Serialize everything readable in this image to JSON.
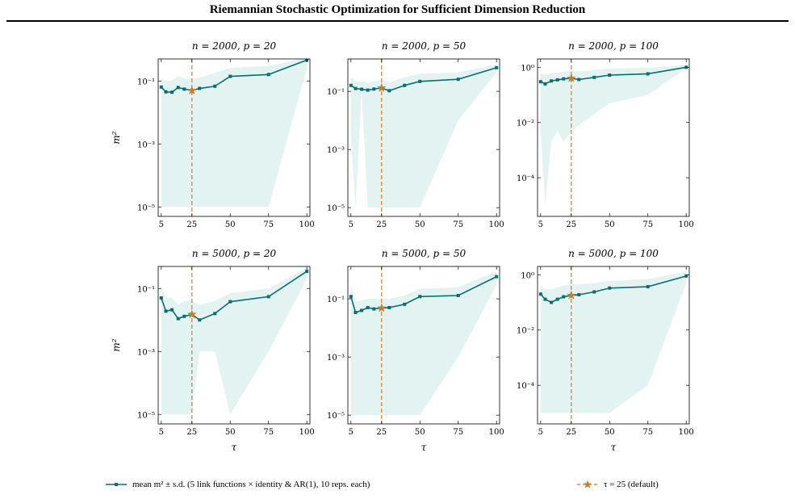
{
  "header": {
    "title": "Riemannian Stochastic Optimization for Sufficient Dimension Reduction"
  },
  "colors": {
    "line": "#0a6e6e",
    "band": "#e3f3f1",
    "reference": "#d9782a",
    "marker": "#ad8a38"
  },
  "legend": {
    "series": "mean m² ± s.d. (5 link functions × identity & AR(1), 10 reps. each)",
    "reference": "τ = 25 (default)"
  },
  "chart_data": [
    {
      "type": "line",
      "title": "n = 2000,  p = 20",
      "xlabel": "",
      "ylabel": "m²",
      "yscale": "log",
      "xlim": [
        3,
        102
      ],
      "ylim": [
        5e-06,
        0.5
      ],
      "yticks": [
        1e-05,
        0.001,
        0.1
      ],
      "ytick_labels": [
        "10⁻⁵",
        "10⁻³",
        "10⁻¹"
      ],
      "xticks": [
        5,
        25,
        50,
        75,
        100
      ],
      "xtick_labels": [
        "5",
        "25",
        "50",
        "75",
        "100"
      ],
      "grid": false,
      "x": [
        5,
        8,
        12,
        16,
        20,
        25,
        30,
        40,
        50,
        75,
        100
      ],
      "mean": [
        0.064,
        0.045,
        0.044,
        0.062,
        0.055,
        0.05,
        0.058,
        0.068,
        0.14,
        0.16,
        0.46
      ],
      "lower": [
        1e-05,
        1e-05,
        1e-05,
        1e-05,
        1e-05,
        1e-05,
        1e-05,
        1e-05,
        1e-05,
        1e-05,
        0.25
      ],
      "upper": [
        0.12,
        0.1,
        0.105,
        0.14,
        0.12,
        0.11,
        0.13,
        0.18,
        0.26,
        0.3,
        0.55
      ],
      "reference_x": 25
    },
    {
      "type": "line",
      "title": "n = 2000,  p = 50",
      "xlabel": "",
      "ylabel": "",
      "yscale": "log",
      "xlim": [
        3,
        102
      ],
      "ylim": [
        5e-06,
        1.3
      ],
      "yticks": [
        1e-05,
        0.001,
        0.1
      ],
      "ytick_labels": [
        "10⁻⁵",
        "10⁻³",
        "10⁻¹"
      ],
      "xticks": [
        5,
        25,
        50,
        75,
        100
      ],
      "xtick_labels": [
        "5",
        "25",
        "50",
        "75",
        "100"
      ],
      "grid": false,
      "x": [
        5,
        8,
        12,
        16,
        20,
        25,
        30,
        40,
        50,
        75,
        100
      ],
      "mean": [
        0.16,
        0.125,
        0.118,
        0.11,
        0.12,
        0.13,
        0.105,
        0.16,
        0.22,
        0.26,
        0.65
      ],
      "lower": [
        0.002,
        1e-05,
        0.1,
        1e-05,
        1e-05,
        1e-05,
        1e-05,
        1e-05,
        1e-05,
        0.01,
        0.45
      ],
      "upper": [
        0.3,
        0.22,
        0.22,
        0.2,
        0.22,
        0.24,
        0.2,
        0.3,
        0.4,
        0.45,
        0.85
      ],
      "reference_x": 25
    },
    {
      "type": "line",
      "title": "n = 2000,  p = 100",
      "xlabel": "",
      "ylabel": "",
      "yscale": "log",
      "xlim": [
        3,
        102
      ],
      "ylim": [
        4e-06,
        2
      ],
      "yticks": [
        0.0001,
        0.01,
        1
      ],
      "ytick_labels": [
        "10⁻⁴",
        "10⁻²",
        "10⁰"
      ],
      "xticks": [
        5,
        25,
        50,
        75,
        100
      ],
      "xtick_labels": [
        "5",
        "25",
        "50",
        "75",
        "100"
      ],
      "grid": false,
      "x": [
        5,
        8,
        12,
        16,
        20,
        25,
        30,
        40,
        50,
        75,
        100
      ],
      "mean": [
        0.3,
        0.25,
        0.32,
        0.35,
        0.38,
        0.4,
        0.36,
        0.43,
        0.52,
        0.58,
        1.0
      ],
      "lower": [
        0.005,
        1e-05,
        0.002,
        0.005,
        0.002,
        0.005,
        0.008,
        0.02,
        0.05,
        0.1,
        0.9
      ],
      "upper": [
        0.6,
        0.55,
        0.6,
        0.65,
        0.7,
        0.75,
        0.7,
        0.8,
        0.9,
        0.95,
        1.2
      ],
      "reference_x": 25
    },
    {
      "type": "line",
      "title": "n = 5000,  p = 20",
      "xlabel": "τ",
      "ylabel": "m²",
      "yscale": "log",
      "xlim": [
        3,
        102
      ],
      "ylim": [
        5e-06,
        0.5
      ],
      "yticks": [
        1e-05,
        0.001,
        0.1
      ],
      "ytick_labels": [
        "10⁻⁵",
        "10⁻³",
        "10⁻¹"
      ],
      "xticks": [
        5,
        25,
        50,
        75,
        100
      ],
      "xtick_labels": [
        "5",
        "25",
        "50",
        "75",
        "100"
      ],
      "grid": false,
      "x": [
        5,
        8,
        12,
        16,
        20,
        25,
        30,
        40,
        50,
        75,
        100
      ],
      "mean": [
        0.05,
        0.019,
        0.021,
        0.011,
        0.013,
        0.015,
        0.01,
        0.016,
        0.038,
        0.055,
        0.35
      ],
      "lower": [
        1e-05,
        1e-05,
        1e-05,
        1e-05,
        1e-05,
        1e-05,
        0.001,
        0.001,
        1e-05,
        0.001,
        0.2
      ],
      "upper": [
        0.1,
        0.05,
        0.05,
        0.03,
        0.04,
        0.04,
        0.03,
        0.04,
        0.07,
        0.1,
        0.45
      ],
      "reference_x": 25
    },
    {
      "type": "line",
      "title": "n = 5000,  p = 50",
      "xlabel": "τ",
      "ylabel": "",
      "yscale": "log",
      "xlim": [
        3,
        102
      ],
      "ylim": [
        5e-06,
        1.3
      ],
      "yticks": [
        1e-05,
        0.001,
        0.1
      ],
      "ytick_labels": [
        "10⁻⁵",
        "10⁻³",
        "10⁻¹"
      ],
      "xticks": [
        5,
        25,
        50,
        75,
        100
      ],
      "xtick_labels": [
        "5",
        "25",
        "50",
        "75",
        "100"
      ],
      "grid": false,
      "x": [
        5,
        8,
        12,
        16,
        20,
        25,
        30,
        40,
        50,
        75,
        100
      ],
      "mean": [
        0.12,
        0.034,
        0.04,
        0.05,
        0.045,
        0.048,
        0.05,
        0.065,
        0.12,
        0.13,
        0.58
      ],
      "lower": [
        1e-05,
        1e-05,
        1e-05,
        1e-05,
        1e-05,
        1e-05,
        1e-05,
        1e-05,
        1e-05,
        0.001,
        0.3
      ],
      "upper": [
        0.3,
        0.08,
        0.09,
        0.1,
        0.1,
        0.1,
        0.1,
        0.13,
        0.22,
        0.25,
        0.9
      ],
      "reference_x": 25
    },
    {
      "type": "line",
      "title": "n = 5000,  p = 100",
      "xlabel": "τ",
      "ylabel": "",
      "yscale": "log",
      "xlim": [
        3,
        102
      ],
      "ylim": [
        4e-06,
        2
      ],
      "yticks": [
        0.0001,
        0.01,
        1
      ],
      "ytick_labels": [
        "10⁻⁴",
        "10⁻²",
        "10⁰"
      ],
      "xticks": [
        5,
        25,
        50,
        75,
        100
      ],
      "xtick_labels": [
        "5",
        "25",
        "50",
        "75",
        "100"
      ],
      "grid": false,
      "x": [
        5,
        8,
        12,
        16,
        20,
        25,
        30,
        40,
        50,
        75,
        100
      ],
      "mean": [
        0.2,
        0.13,
        0.1,
        0.13,
        0.16,
        0.18,
        0.19,
        0.24,
        0.33,
        0.37,
        0.9
      ],
      "lower": [
        1e-05,
        1e-05,
        1e-05,
        1e-05,
        1e-05,
        1e-05,
        1e-05,
        1e-05,
        1e-05,
        0.0001,
        0.5
      ],
      "upper": [
        0.4,
        0.3,
        0.3,
        0.35,
        0.4,
        0.45,
        0.45,
        0.5,
        0.6,
        0.7,
        1.3
      ],
      "reference_x": 25
    }
  ]
}
